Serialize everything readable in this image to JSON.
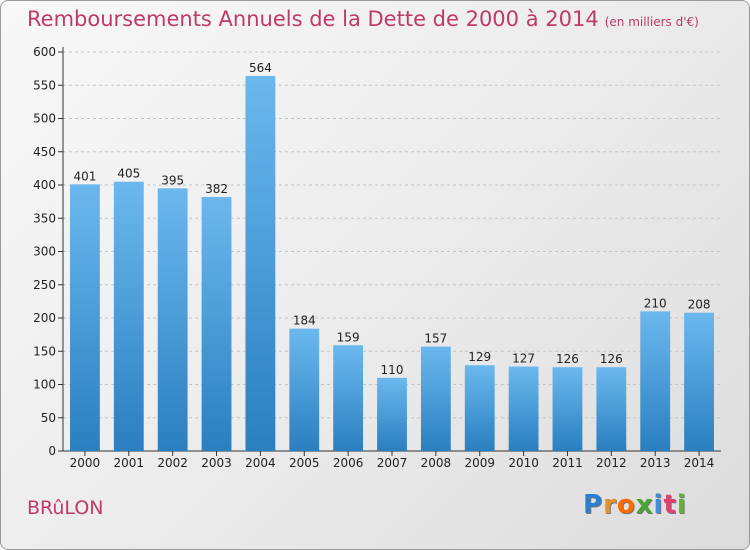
{
  "title": "Remboursements Annuels de la Dette de 2000 à 2014",
  "subtitle": "(en milliers d'€)",
  "commune": "BRûLON",
  "logo": {
    "letters": [
      "P",
      "r",
      "o",
      "x",
      "i",
      "t",
      "i"
    ],
    "colors": [
      "#2b7fd0",
      "#e8902a",
      "#ff6a00",
      "#4aa532",
      "#3b8ee0",
      "#e04070",
      "#5fb531"
    ]
  },
  "colors": {
    "bar_light": "#6bb8ee",
    "bar_dark": "#2a7fc0",
    "title": "#c0396b"
  },
  "chart_data": {
    "type": "bar",
    "title": "Remboursements Annuels de la Dette de 2000 à 2014",
    "subtitle": "(en milliers d'€)",
    "categories": [
      "2000",
      "2001",
      "2002",
      "2003",
      "2004",
      "2005",
      "2006",
      "2007",
      "2008",
      "2009",
      "2010",
      "2011",
      "2012",
      "2013",
      "2014"
    ],
    "values": [
      401,
      405,
      395,
      382,
      564,
      184,
      159,
      110,
      157,
      129,
      127,
      126,
      126,
      210,
      208
    ],
    "yticks": [
      0,
      50,
      100,
      150,
      200,
      250,
      300,
      350,
      400,
      450,
      500,
      550,
      600
    ],
    "ylim": [
      0,
      600
    ],
    "grid": true
  }
}
